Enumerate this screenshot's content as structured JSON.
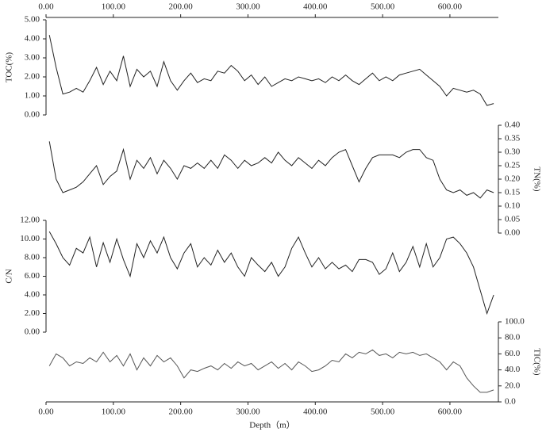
{
  "chart_data": [
    {
      "type": "line",
      "ylabel": "TOC(%)",
      "y_axis_side": "left",
      "x_axis_side": "top",
      "color": "#222222",
      "xlim": [
        0,
        672
      ],
      "xticks": [
        {
          "value": 0,
          "label": "0.00"
        },
        {
          "value": 100,
          "label": "100.00"
        },
        {
          "value": 200,
          "label": "200.00"
        },
        {
          "value": 300,
          "label": "300.00"
        },
        {
          "value": 400,
          "label": "400.00"
        },
        {
          "value": 500,
          "label": "500.00"
        },
        {
          "value": 600,
          "label": "600.00"
        }
      ],
      "ylim": [
        0,
        5
      ],
      "yticks": [
        {
          "value": 0,
          "label": "0.00"
        },
        {
          "value": 1,
          "label": "1.00"
        },
        {
          "value": 2,
          "label": "2.00"
        },
        {
          "value": 3,
          "label": "3.00"
        },
        {
          "value": 4,
          "label": "4.00"
        },
        {
          "value": 5,
          "label": "5.00"
        }
      ],
      "x": [
        5,
        15,
        25,
        35,
        45,
        55,
        65,
        75,
        85,
        95,
        105,
        115,
        125,
        135,
        145,
        155,
        165,
        175,
        185,
        195,
        205,
        215,
        225,
        235,
        245,
        255,
        265,
        275,
        285,
        295,
        305,
        315,
        325,
        335,
        345,
        355,
        365,
        375,
        385,
        395,
        405,
        415,
        425,
        435,
        445,
        455,
        465,
        475,
        485,
        495,
        505,
        515,
        525,
        535,
        545,
        555,
        565,
        575,
        585,
        595,
        605,
        615,
        625,
        635,
        645,
        655,
        665
      ],
      "values": [
        4.2,
        2.5,
        1.1,
        1.2,
        1.4,
        1.2,
        1.8,
        2.5,
        1.6,
        2.3,
        1.8,
        3.1,
        1.5,
        2.4,
        2.0,
        2.3,
        1.5,
        2.8,
        1.8,
        1.3,
        1.8,
        2.2,
        1.7,
        1.9,
        1.8,
        2.3,
        2.2,
        2.6,
        2.3,
        1.8,
        2.1,
        1.6,
        2.0,
        1.5,
        1.7,
        1.9,
        1.8,
        2.0,
        1.9,
        1.8,
        1.9,
        1.7,
        2.0,
        1.8,
        2.1,
        1.8,
        1.6,
        1.9,
        2.2,
        1.8,
        2.0,
        1.8,
        2.1,
        2.2,
        2.3,
        2.4,
        2.1,
        1.8,
        1.5,
        1.0,
        1.4,
        1.3,
        1.2,
        1.3,
        1.1,
        0.5,
        0.6
      ]
    },
    {
      "type": "line",
      "ylabel": "TN(%)",
      "y_axis_side": "right",
      "color": "#222222",
      "xlim": [
        0,
        672
      ],
      "ylim": [
        0,
        0.4
      ],
      "yticks": [
        {
          "value": 0,
          "label": "0.00"
        },
        {
          "value": 0.05,
          "label": "0.05"
        },
        {
          "value": 0.1,
          "label": "0.10"
        },
        {
          "value": 0.15,
          "label": "0.15"
        },
        {
          "value": 0.2,
          "label": "0.20"
        },
        {
          "value": 0.25,
          "label": "0.25"
        },
        {
          "value": 0.3,
          "label": "0.30"
        },
        {
          "value": 0.35,
          "label": "0.35"
        },
        {
          "value": 0.4,
          "label": "0.40"
        }
      ],
      "x": [
        5,
        15,
        25,
        35,
        45,
        55,
        65,
        75,
        85,
        95,
        105,
        115,
        125,
        135,
        145,
        155,
        165,
        175,
        185,
        195,
        205,
        215,
        225,
        235,
        245,
        255,
        265,
        275,
        285,
        295,
        305,
        315,
        325,
        335,
        345,
        355,
        365,
        375,
        385,
        395,
        405,
        415,
        425,
        435,
        445,
        455,
        465,
        475,
        485,
        495,
        505,
        515,
        525,
        535,
        545,
        555,
        565,
        575,
        585,
        595,
        605,
        615,
        625,
        635,
        645,
        655,
        665
      ],
      "values": [
        0.34,
        0.2,
        0.15,
        0.16,
        0.17,
        0.19,
        0.22,
        0.25,
        0.18,
        0.21,
        0.23,
        0.31,
        0.2,
        0.27,
        0.24,
        0.28,
        0.22,
        0.27,
        0.24,
        0.2,
        0.25,
        0.24,
        0.26,
        0.24,
        0.27,
        0.24,
        0.29,
        0.27,
        0.24,
        0.27,
        0.25,
        0.26,
        0.28,
        0.26,
        0.3,
        0.27,
        0.25,
        0.28,
        0.26,
        0.24,
        0.27,
        0.25,
        0.28,
        0.3,
        0.31,
        0.25,
        0.19,
        0.24,
        0.28,
        0.29,
        0.29,
        0.29,
        0.28,
        0.3,
        0.31,
        0.31,
        0.28,
        0.27,
        0.2,
        0.16,
        0.15,
        0.16,
        0.14,
        0.15,
        0.13,
        0.16,
        0.15
      ]
    },
    {
      "type": "line",
      "ylabel": "C/N",
      "y_axis_side": "left",
      "color": "#222222",
      "xlim": [
        0,
        672
      ],
      "ylim": [
        0,
        12
      ],
      "yticks": [
        {
          "value": 0,
          "label": "0.00"
        },
        {
          "value": 2,
          "label": "2.00"
        },
        {
          "value": 4,
          "label": "4.00"
        },
        {
          "value": 6,
          "label": "6.00"
        },
        {
          "value": 8,
          "label": "8.00"
        },
        {
          "value": 10,
          "label": "10.00"
        },
        {
          "value": 12,
          "label": "12.00"
        }
      ],
      "x": [
        5,
        15,
        25,
        35,
        45,
        55,
        65,
        75,
        85,
        95,
        105,
        115,
        125,
        135,
        145,
        155,
        165,
        175,
        185,
        195,
        205,
        215,
        225,
        235,
        245,
        255,
        265,
        275,
        285,
        295,
        305,
        315,
        325,
        335,
        345,
        355,
        365,
        375,
        385,
        395,
        405,
        415,
        425,
        435,
        445,
        455,
        465,
        475,
        485,
        495,
        505,
        515,
        525,
        535,
        545,
        555,
        565,
        575,
        585,
        595,
        605,
        615,
        625,
        635,
        645,
        655,
        665
      ],
      "values": [
        10.8,
        9.5,
        8.0,
        7.2,
        9.0,
        8.5,
        10.2,
        7.0,
        9.6,
        7.5,
        10.0,
        7.8,
        6.0,
        9.5,
        8.0,
        9.8,
        8.5,
        10.2,
        8.0,
        6.8,
        8.5,
        9.5,
        7.0,
        8.0,
        7.2,
        8.8,
        7.5,
        8.5,
        7.0,
        6.0,
        8.0,
        7.2,
        6.5,
        7.5,
        6.0,
        7.0,
        9.0,
        10.2,
        8.5,
        7.0,
        8.0,
        6.8,
        7.5,
        6.8,
        7.2,
        6.5,
        7.8,
        7.8,
        7.5,
        6.2,
        6.8,
        8.5,
        6.5,
        7.5,
        9.2,
        7.0,
        9.5,
        7.0,
        8.0,
        10.0,
        10.2,
        9.5,
        8.5,
        7.0,
        4.5,
        2.0,
        4.0
      ]
    },
    {
      "type": "line",
      "ylabel": "TIC(%)",
      "y_axis_side": "right",
      "x_axis_side": "bottom",
      "xlabel": "Depth（m）",
      "color": "#555555",
      "xlim": [
        0,
        672
      ],
      "xticks": [
        {
          "value": 0,
          "label": "0.00"
        },
        {
          "value": 100,
          "label": "100.00"
        },
        {
          "value": 200,
          "label": "200.00"
        },
        {
          "value": 300,
          "label": "300.00"
        },
        {
          "value": 400,
          "label": "400.00"
        },
        {
          "value": 500,
          "label": "500.00"
        },
        {
          "value": 600,
          "label": "600.00"
        }
      ],
      "ylim": [
        0,
        100
      ],
      "yticks": [
        {
          "value": 0,
          "label": "0.0"
        },
        {
          "value": 20,
          "label": "20.0"
        },
        {
          "value": 40,
          "label": "40.0"
        },
        {
          "value": 60,
          "label": "60.0"
        },
        {
          "value": 80,
          "label": "80.0"
        },
        {
          "value": 100,
          "label": "100.0"
        }
      ],
      "x": [
        5,
        15,
        25,
        35,
        45,
        55,
        65,
        75,
        85,
        95,
        105,
        115,
        125,
        135,
        145,
        155,
        165,
        175,
        185,
        195,
        205,
        215,
        225,
        235,
        245,
        255,
        265,
        275,
        285,
        295,
        305,
        315,
        325,
        335,
        345,
        355,
        365,
        375,
        385,
        395,
        405,
        415,
        425,
        435,
        445,
        455,
        465,
        475,
        485,
        495,
        505,
        515,
        525,
        535,
        545,
        555,
        565,
        575,
        585,
        595,
        605,
        615,
        625,
        635,
        645,
        655,
        665
      ],
      "values": [
        45,
        60,
        55,
        45,
        50,
        48,
        55,
        50,
        62,
        50,
        58,
        45,
        60,
        40,
        55,
        45,
        58,
        50,
        55,
        45,
        30,
        40,
        38,
        42,
        45,
        40,
        48,
        42,
        50,
        45,
        48,
        40,
        45,
        50,
        42,
        48,
        40,
        50,
        45,
        38,
        40,
        45,
        52,
        50,
        60,
        55,
        62,
        60,
        65,
        58,
        60,
        55,
        62,
        60,
        62,
        58,
        60,
        55,
        50,
        40,
        50,
        45,
        30,
        20,
        12,
        12,
        15
      ]
    }
  ]
}
